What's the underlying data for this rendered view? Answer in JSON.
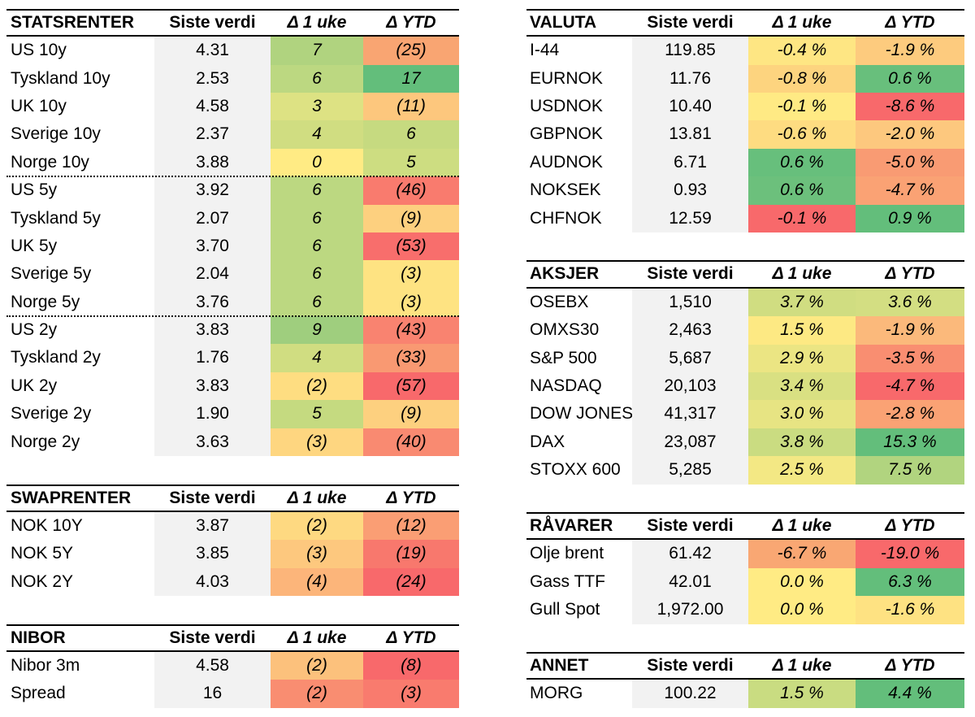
{
  "colors": {
    "value_column": "#f2f2f2"
  },
  "left": [
    {
      "title": "STATSRENTER",
      "columns": [
        "Siste verdi",
        "Δ 1 uke",
        "Δ YTD"
      ],
      "groups": [
        [
          {
            "label": "US 10y",
            "value": "4.31",
            "week": "7",
            "ytd": "(25)",
            "week_color": "#b0d37f",
            "ytd_color": "#f9a572"
          },
          {
            "label": "Tyskland 10y",
            "value": "2.53",
            "week": "6",
            "ytd": "17",
            "week_color": "#bcd881",
            "ytd_color": "#63be7b"
          },
          {
            "label": "UK 10y",
            "value": "4.58",
            "week": "3",
            "ytd": "(11)",
            "week_color": "#dde283",
            "ytd_color": "#fdc77d"
          },
          {
            "label": "Sverige 10y",
            "value": "2.37",
            "week": "4",
            "ytd": "6",
            "week_color": "#d0dd81",
            "ytd_color": "#c6da80"
          },
          {
            "label": "Norge 10y",
            "value": "3.88",
            "week": "0",
            "ytd": "5",
            "week_color": "#ffeb84",
            "ytd_color": "#cddd81"
          }
        ],
        [
          {
            "label": "US 5y",
            "value": "3.92",
            "week": "6",
            "ytd": "(46)",
            "week_color": "#bcd881",
            "ytd_color": "#f97b6e"
          },
          {
            "label": "Tyskland 5y",
            "value": "2.07",
            "week": "6",
            "ytd": "(9)",
            "week_color": "#bcd881",
            "ytd_color": "#fdd07f"
          },
          {
            "label": "UK 5y",
            "value": "3.70",
            "week": "6",
            "ytd": "(53)",
            "week_color": "#bcd881",
            "ytd_color": "#f86e6c"
          },
          {
            "label": "Sverige 5y",
            "value": "2.04",
            "week": "6",
            "ytd": "(3)",
            "week_color": "#bcd881",
            "ytd_color": "#fee382"
          },
          {
            "label": "Norge 5y",
            "value": "3.76",
            "week": "6",
            "ytd": "(3)",
            "week_color": "#bcd881",
            "ytd_color": "#fee382"
          }
        ],
        [
          {
            "label": "US 2y",
            "value": "3.83",
            "week": "9",
            "ytd": "(43)",
            "week_color": "#9fce7e",
            "ytd_color": "#f98370"
          },
          {
            "label": "Tyskland 2y",
            "value": "1.76",
            "week": "4",
            "ytd": "(33)",
            "week_color": "#d0dd81",
            "ytd_color": "#f99972"
          },
          {
            "label": "UK 2y",
            "value": "3.83",
            "week": "(2)",
            "ytd": "(57)",
            "week_color": "#fedd81",
            "ytd_color": "#f8696b"
          },
          {
            "label": "Sverige 2y",
            "value": "1.90",
            "week": "5",
            "ytd": "(9)",
            "week_color": "#c5da80",
            "ytd_color": "#fdd07f"
          },
          {
            "label": "Norge 2y",
            "value": "3.63",
            "week": "(3)",
            "ytd": "(40)",
            "week_color": "#fed680",
            "ytd_color": "#f98a71"
          }
        ]
      ]
    },
    {
      "title": "SWAPRENTER",
      "columns": [
        "Siste verdi",
        "Δ 1 uke",
        "Δ YTD"
      ],
      "groups": [
        [
          {
            "label": "NOK 10Y",
            "value": "3.87",
            "week": "(2)",
            "ytd": "(12)",
            "week_color": "#fed981",
            "ytd_color": "#fa9e74"
          },
          {
            "label": "NOK 5Y",
            "value": "3.85",
            "week": "(3)",
            "ytd": "(19)",
            "week_color": "#fdc87e",
            "ytd_color": "#f8786d"
          },
          {
            "label": "NOK 2Y",
            "value": "4.03",
            "week": "(4)",
            "ytd": "(24)",
            "week_color": "#fcb57a",
            "ytd_color": "#f8696b"
          }
        ]
      ]
    },
    {
      "title": "NIBOR",
      "columns": [
        "Siste verdi",
        "Δ 1 uke",
        "Δ YTD"
      ],
      "groups": [
        [
          {
            "label": "Nibor 3m",
            "value": "4.58",
            "week": "(2)",
            "ytd": "(8)",
            "week_color": "#fcc17c",
            "ytd_color": "#f8696b"
          },
          {
            "label": "Spread",
            "value": "16",
            "week": "(2)",
            "ytd": "(3)",
            "week_color": "#f98d71",
            "ytd_color": "#f97b6e"
          }
        ]
      ]
    }
  ],
  "right": [
    {
      "title": "VALUTA",
      "columns": [
        "Siste verdi",
        "Δ 1 uke",
        "Δ YTD"
      ],
      "groups": [
        [
          {
            "label": "I-44",
            "value": "119.85",
            "week": "-0.4 %",
            "ytd": "-1.9 %",
            "week_color": "#fee683",
            "ytd_color": "#fdcb7e"
          },
          {
            "label": "EURNOK",
            "value": "11.76",
            "week": "-0.8 %",
            "ytd": "0.6 %",
            "week_color": "#fdd47f",
            "ytd_color": "#68bf7c"
          },
          {
            "label": "USDNOK",
            "value": "10.40",
            "week": "-0.1 %",
            "ytd": "-8.6 %",
            "week_color": "#ffea84",
            "ytd_color": "#f8696b"
          },
          {
            "label": "GBPNOK",
            "value": "13.81",
            "week": "-0.6 %",
            "ytd": "-2.0 %",
            "week_color": "#fedc81",
            "ytd_color": "#fdc87e"
          },
          {
            "label": "AUDNOK",
            "value": "6.71",
            "week": "0.6 %",
            "ytd": "-5.0 %",
            "week_color": "#67bf7c",
            "ytd_color": "#f99b73"
          },
          {
            "label": "NOKSEK",
            "value": "0.93",
            "week": "0.6 %",
            "ytd": "-4.7 %",
            "week_color": "#6cc07c",
            "ytd_color": "#faa274"
          },
          {
            "label": "CHFNOK",
            "value": "12.59",
            "week": "-0.1 %",
            "ytd": "0.9 %",
            "week_color": "#f8696b",
            "ytd_color": "#63be7b"
          }
        ]
      ]
    },
    {
      "title": "AKSJER",
      "columns": [
        "Siste verdi",
        "Δ 1 uke",
        "Δ YTD"
      ],
      "groups": [
        [
          {
            "label": "OSEBX",
            "value": "1,510",
            "week": "3.7 %",
            "ytd": "3.6 %",
            "week_color": "#d0dd81",
            "ytd_color": "#d3de82"
          },
          {
            "label": "OMXS30",
            "value": "2,463",
            "week": "1.5 %",
            "ytd": "-1.9 %",
            "week_color": "#fde983",
            "ytd_color": "#fbb97b"
          },
          {
            "label": "S&P 500",
            "value": "5,687",
            "week": "2.9 %",
            "ytd": "-3.5 %",
            "week_color": "#ebe583",
            "ytd_color": "#f98e71"
          },
          {
            "label": "NASDAQ",
            "value": "20,103",
            "week": "3.4 %",
            "ytd": "-4.7 %",
            "week_color": "#d9e082",
            "ytd_color": "#f8696b"
          },
          {
            "label": "DOW JONES",
            "value": "41,317",
            "week": "3.0 %",
            "ytd": "-2.8 %",
            "week_color": "#e7e483",
            "ytd_color": "#faa274"
          },
          {
            "label": "DAX",
            "value": "23,087",
            "week": "3.8 %",
            "ytd": "15.3 %",
            "week_color": "#cadc81",
            "ytd_color": "#63be7b"
          },
          {
            "label": "STOXX 600",
            "value": "5,285",
            "week": "2.5 %",
            "ytd": "7.5 %",
            "week_color": "#f3e884",
            "ytd_color": "#b1d47f"
          }
        ]
      ]
    },
    {
      "title": "RÅVARER",
      "columns": [
        "Siste verdi",
        "Δ 1 uke",
        "Δ YTD"
      ],
      "groups": [
        [
          {
            "label": "Olje brent",
            "value": "61.42",
            "week": "-6.7 %",
            "ytd": "-19.0 %",
            "week_color": "#f9a773",
            "ytd_color": "#f8696b"
          },
          {
            "label": "Gass TTF",
            "value": "42.01",
            "week": "0.0 %",
            "ytd": "6.3 %",
            "week_color": "#ffeb84",
            "ytd_color": "#63be7b"
          },
          {
            "label": "Gull Spot",
            "value": "1,972.00",
            "week": "0.0 %",
            "ytd": "-1.6 %",
            "week_color": "#ffeb84",
            "ytd_color": "#fee282"
          }
        ]
      ]
    },
    {
      "title": "ANNET",
      "columns": [
        "Siste verdi",
        "Δ 1 uke",
        "Δ YTD"
      ],
      "groups": [
        [
          {
            "label": "MORG",
            "value": "100.22",
            "week": "1.5 %",
            "ytd": "4.4 %",
            "week_color": "#c9dc81",
            "ytd_color": "#63be7b"
          }
        ]
      ]
    }
  ]
}
